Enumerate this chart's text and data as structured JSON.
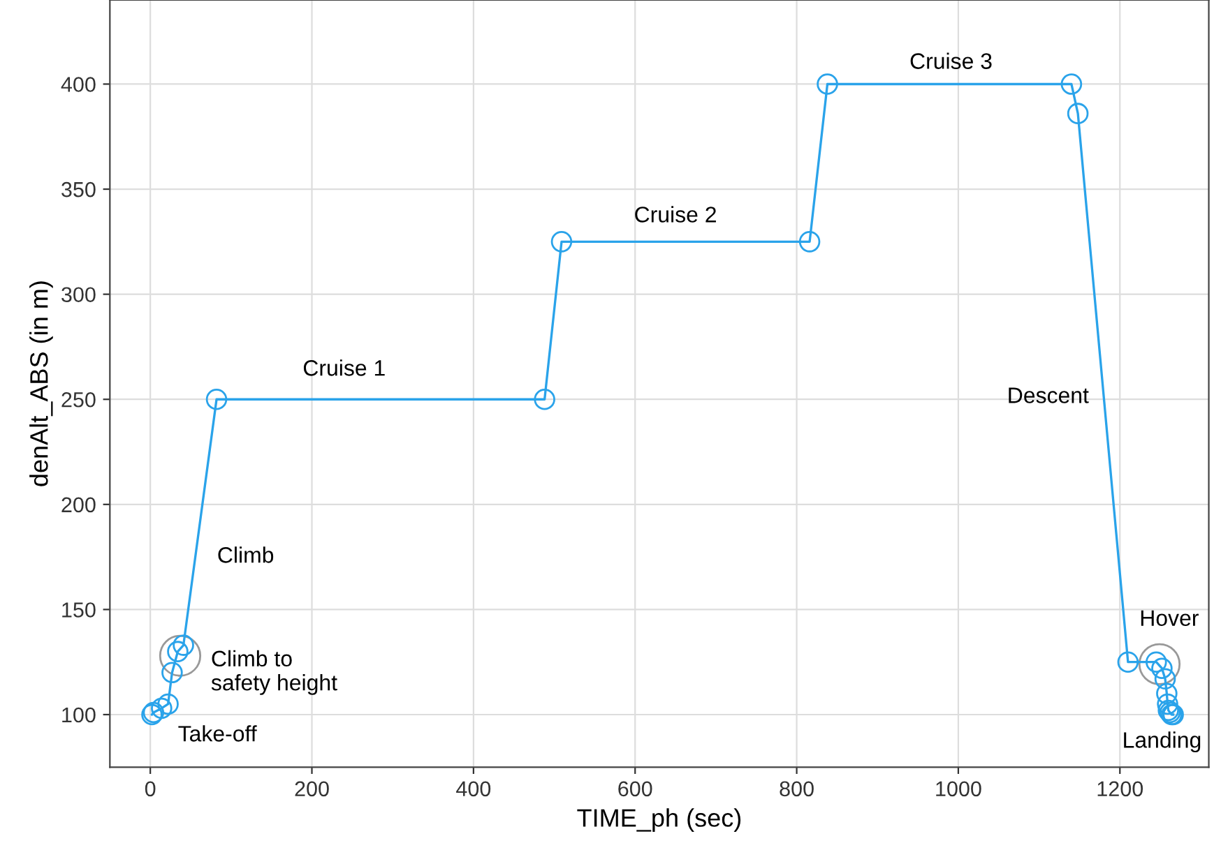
{
  "chart_data": {
    "type": "line",
    "xlabel": "TIME_ph (sec)",
    "ylabel": "denAlt_ABS (in m)",
    "xlim": [
      -50,
      1310
    ],
    "ylim": [
      75,
      440
    ],
    "xticks": [
      0,
      200,
      400,
      600,
      800,
      1000,
      1200
    ],
    "yticks": [
      100,
      150,
      200,
      250,
      300,
      350,
      400
    ],
    "grid": true,
    "marker": "circle",
    "line_style": "solid",
    "series": [
      {
        "color": "#2aa3ea",
        "x": [
          2,
          4,
          14,
          22,
          27,
          34,
          41,
          82,
          488,
          509,
          816,
          838,
          1140,
          1148,
          1210,
          1245,
          1252,
          1256,
          1258,
          1259,
          1260,
          1262,
          1264,
          1266
        ],
        "values": [
          100,
          101,
          103,
          105,
          120,
          130,
          133,
          250,
          250,
          325,
          325,
          400,
          400,
          386,
          125,
          125,
          122,
          117,
          110,
          105,
          102,
          101,
          100,
          100
        ]
      }
    ],
    "annotations": [
      "Take-off",
      "Climb to\nsafety height",
      "Climb",
      "Cruise 1",
      "Cruise 2",
      "Cruise 3",
      "Descent",
      "Hover",
      "Landing"
    ]
  }
}
